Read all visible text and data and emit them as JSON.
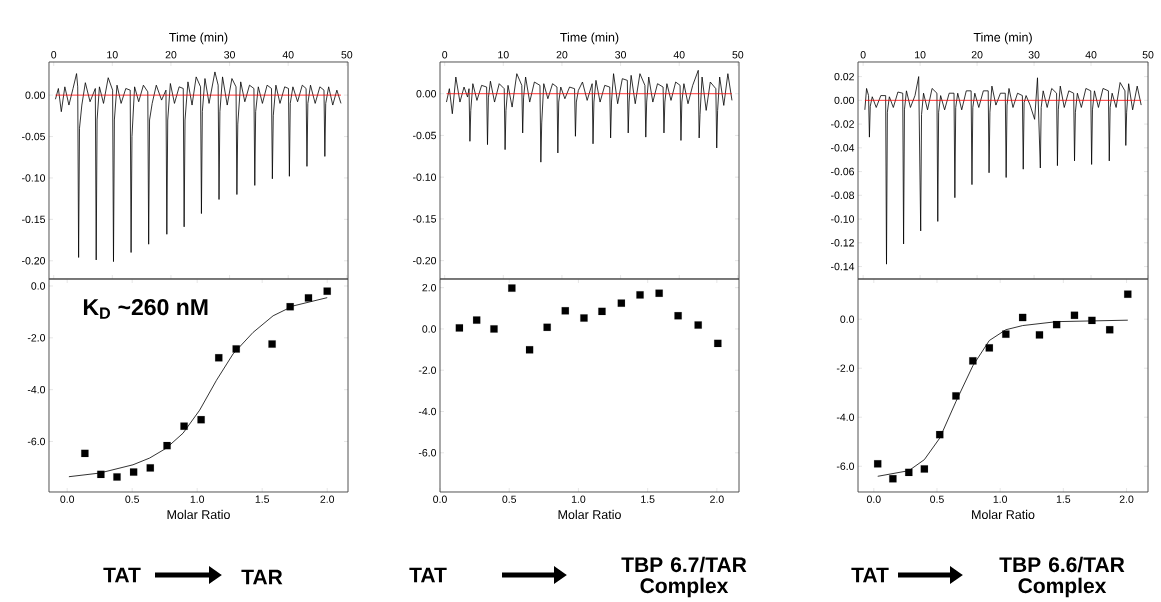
{
  "chart_data": [
    {
      "type": "line",
      "xlabel": "Time (min)",
      "xlim": [
        -0.8,
        50.2
      ],
      "xticks": [
        0,
        10,
        20,
        30,
        40,
        50
      ],
      "ylim": [
        -0.222,
        0.04
      ],
      "yticks": [
        {
          "value": 0,
          "label": "0.00"
        },
        {
          "value": -0.05,
          "label": "-0.05"
        },
        {
          "value": -0.1,
          "label": "-0.10"
        },
        {
          "value": -0.15,
          "label": "-0.15"
        },
        {
          "value": -0.2,
          "label": "-0.20"
        }
      ],
      "marker": "none",
      "series": [
        {
          "color": "#000000",
          "x": [
            0.3,
            0.8,
            1.3,
            1.9,
            2.6,
            3.3,
            3.9,
            4.1,
            4.25,
            4.4,
            4.8,
            5.4,
            6.2,
            7.1,
            7.25,
            7.4,
            7.8,
            8.5,
            9.3,
            10.05,
            10.2,
            10.35,
            10.8,
            11.5,
            12.3,
            13.05,
            13.2,
            13.35,
            13.8,
            14.5,
            15.3,
            16.05,
            16.2,
            16.35,
            16.8,
            17.5,
            18.4,
            19.15,
            19.3,
            19.45,
            19.9,
            20.6,
            21.4,
            22.1,
            22.25,
            22.4,
            22.9,
            23.6,
            24.3,
            25.05,
            25.2,
            25.35,
            25.8,
            26.5,
            27.5,
            28.05,
            28.2,
            28.35,
            28.8,
            29.6,
            30.4,
            31.1,
            31.25,
            31.4,
            31.9,
            32.6,
            33.4,
            34.15,
            34.3,
            34.45,
            34.9,
            35.6,
            36.4,
            37.15,
            37.3,
            37.45,
            37.9,
            38.6,
            39.4,
            40.05,
            40.2,
            40.35,
            40.8,
            41.6,
            42.4,
            43.05,
            43.2,
            43.35,
            43.8,
            44.6,
            45.4,
            46.1,
            46.25,
            46.4,
            46.9,
            47.6,
            48.3,
            49.0
          ],
          "values": [
            -0.005,
            0.008,
            -0.02,
            0.01,
            -0.012,
            0.008,
            0.026,
            0.01,
            -0.196,
            -0.04,
            -0.012,
            0.015,
            -0.008,
            0.008,
            -0.199,
            -0.03,
            0.01,
            -0.01,
            0.021,
            0.006,
            -0.201,
            -0.03,
            0.012,
            -0.01,
            0.008,
            0.006,
            -0.19,
            -0.05,
            0.01,
            -0.008,
            0.012,
            0.004,
            -0.18,
            -0.03,
            -0.01,
            0.012,
            -0.006,
            0.006,
            -0.168,
            -0.03,
            0.014,
            -0.01,
            0.01,
            0.008,
            -0.159,
            -0.03,
            0.016,
            -0.012,
            0.022,
            0.01,
            -0.143,
            -0.02,
            0.02,
            -0.01,
            0.028,
            0.012,
            -0.126,
            -0.02,
            0.022,
            -0.012,
            0.02,
            0.01,
            -0.12,
            -0.035,
            0.016,
            -0.008,
            0.012,
            0.008,
            -0.109,
            -0.02,
            0.01,
            -0.01,
            0.012,
            0.008,
            -0.101,
            -0.025,
            0.012,
            -0.01,
            0.01,
            0.008,
            -0.098,
            -0.01,
            0.01,
            -0.008,
            0.012,
            0.008,
            -0.086,
            -0.01,
            0.012,
            -0.01,
            0.01,
            0.006,
            -0.074,
            -0.01,
            0.01,
            -0.012,
            0.006,
            -0.01
          ]
        },
        {
          "color": "#ff0000",
          "x": [
            0.3,
            49.0
          ],
          "values": [
            0,
            0
          ]
        }
      ]
    },
    {
      "type": "line",
      "xlabel": "Time (min)",
      "xlim": [
        -0.8,
        50.2
      ],
      "xticks": [
        0,
        10,
        20,
        30,
        40,
        50
      ],
      "ylim": [
        -0.222,
        0.038
      ],
      "yticks": [
        {
          "value": 0,
          "label": "0.00"
        },
        {
          "value": -0.05,
          "label": "-0.05"
        },
        {
          "value": -0.1,
          "label": "-0.10"
        },
        {
          "value": -0.15,
          "label": "-0.15"
        },
        {
          "value": -0.2,
          "label": "-0.20"
        }
      ],
      "marker": "none",
      "series": [
        {
          "color": "#000000",
          "x": [
            0.3,
            0.8,
            1.3,
            1.9,
            2.6,
            3.3,
            3.9,
            4.15,
            4.3,
            4.45,
            4.8,
            5.5,
            6.3,
            7.15,
            7.3,
            7.45,
            7.8,
            8.5,
            9.3,
            10.15,
            10.3,
            10.45,
            10.8,
            11.5,
            12.3,
            13.15,
            13.3,
            13.45,
            13.8,
            14.5,
            15.3,
            16.25,
            16.4,
            16.55,
            16.9,
            17.6,
            18.4,
            19.15,
            19.3,
            19.45,
            19.8,
            20.5,
            21.3,
            22.15,
            22.3,
            22.45,
            22.8,
            23.5,
            24.3,
            25.15,
            25.3,
            25.45,
            25.8,
            26.5,
            27.3,
            28.15,
            28.3,
            28.45,
            28.8,
            29.5,
            30.3,
            31.15,
            31.3,
            31.45,
            31.8,
            32.5,
            33.3,
            34.15,
            34.3,
            34.45,
            34.8,
            35.5,
            36.3,
            37.25,
            37.4,
            37.55,
            37.9,
            38.6,
            39.4,
            40.15,
            40.3,
            40.45,
            40.8,
            41.5,
            42.3,
            43.25,
            43.4,
            43.55,
            43.9,
            44.6,
            45.3,
            46.25,
            46.4,
            46.55,
            46.9,
            47.6,
            48.3,
            49.0
          ],
          "values": [
            -0.01,
            0.006,
            -0.024,
            0.02,
            -0.01,
            0.008,
            -0.004,
            0.006,
            -0.057,
            -0.02,
            0.012,
            -0.008,
            0.01,
            0.008,
            -0.061,
            -0.005,
            0.015,
            -0.01,
            0.012,
            0.006,
            -0.067,
            -0.02,
            0.01,
            -0.016,
            0.024,
            0.01,
            -0.047,
            -0.005,
            0.02,
            -0.01,
            0.014,
            0.01,
            -0.082,
            -0.035,
            0.012,
            -0.006,
            0.012,
            0.008,
            -0.071,
            -0.01,
            0.008,
            -0.006,
            0.008,
            0.006,
            -0.051,
            -0.01,
            0.004,
            0.014,
            -0.008,
            0.012,
            -0.06,
            -0.01,
            0.016,
            -0.01,
            0.01,
            0.008,
            -0.053,
            -0.01,
            0.024,
            -0.012,
            0.018,
            0.016,
            -0.047,
            -0.01,
            0.022,
            -0.012,
            0.024,
            0.01,
            -0.052,
            -0.01,
            0.02,
            -0.01,
            0.012,
            0.008,
            -0.047,
            -0.01,
            0.012,
            -0.008,
            0.014,
            0.01,
            -0.056,
            -0.01,
            0.012,
            -0.012,
            0.01,
            0.028,
            -0.053,
            -0.025,
            0.02,
            -0.02,
            0.014,
            0.006,
            -0.065,
            -0.02,
            0.02,
            -0.014,
            0.024,
            -0.008
          ]
        },
        {
          "color": "#ff0000",
          "x": [
            0.3,
            49.0
          ],
          "values": [
            0,
            0
          ]
        }
      ]
    },
    {
      "type": "line",
      "xlabel": "Time (min)",
      "xlim": [
        -0.9,
        50.0
      ],
      "xticks": [
        0,
        10,
        20,
        30,
        40,
        50
      ],
      "ylim": [
        -0.1505,
        0.0323
      ],
      "yticks": [
        {
          "value": 0.02,
          "label": "0.02"
        },
        {
          "value": 0,
          "label": "0.00"
        },
        {
          "value": -0.02,
          "label": "-0.02"
        },
        {
          "value": -0.04,
          "label": "-0.04"
        },
        {
          "value": -0.06,
          "label": "-0.06"
        },
        {
          "value": -0.08,
          "label": "-0.08"
        },
        {
          "value": -0.1,
          "label": "-0.10"
        },
        {
          "value": -0.12,
          "label": "-0.12"
        },
        {
          "value": -0.14,
          "label": "-0.14"
        }
      ],
      "marker": "none",
      "series": [
        {
          "color": "#000000",
          "x": [
            0.3,
            0.6,
            0.95,
            1.1,
            1.25,
            1.6,
            2.3,
            3.1,
            3.95,
            4.1,
            4.25,
            4.6,
            5.3,
            6.1,
            6.95,
            7.1,
            7.25,
            7.6,
            8.3,
            9.1,
            9.75,
            10.1,
            10.25,
            10.6,
            11.3,
            12.1,
            12.95,
            13.1,
            13.25,
            13.6,
            14.3,
            15.1,
            15.95,
            16.1,
            16.25,
            16.6,
            17.3,
            18.1,
            18.95,
            19.1,
            19.25,
            19.6,
            20.3,
            21.1,
            21.95,
            22.1,
            22.25,
            22.6,
            23.3,
            24.1,
            24.95,
            25.1,
            25.25,
            25.6,
            26.3,
            27.1,
            27.95,
            28.1,
            28.25,
            28.6,
            29.3,
            30.1,
            30.6,
            31.1,
            31.25,
            31.6,
            32.3,
            33.1,
            33.95,
            34.1,
            34.25,
            34.6,
            35.3,
            36.1,
            36.95,
            37.1,
            37.25,
            37.6,
            38.3,
            39.1,
            39.95,
            40.1,
            40.25,
            40.6,
            41.3,
            42.1,
            43.05,
            43.2,
            43.35,
            43.7,
            44.4,
            45.1,
            45.95,
            46.1,
            46.25,
            46.6,
            47.3,
            48.1,
            48.8
          ],
          "values": [
            -0.008,
            0.01,
            0.004,
            -0.031,
            -0.005,
            0.003,
            -0.006,
            0.004,
            0.004,
            -0.138,
            -0.01,
            0.003,
            -0.006,
            0.007,
            0.006,
            -0.121,
            -0.008,
            0.008,
            -0.006,
            0.004,
            0.02,
            -0.11,
            -0.012,
            0.006,
            -0.008,
            0.01,
            0.006,
            -0.102,
            -0.01,
            0.004,
            -0.008,
            0.006,
            0.006,
            -0.082,
            -0.006,
            0.006,
            -0.008,
            0.008,
            0.008,
            -0.071,
            -0.006,
            0.006,
            -0.006,
            0.008,
            0.008,
            -0.061,
            -0.01,
            0.012,
            -0.004,
            0.006,
            0.006,
            -0.065,
            -0.004,
            0.01,
            -0.006,
            0.006,
            0.004,
            -0.058,
            -0.002,
            0.004,
            -0.004,
            -0.016,
            0.019,
            -0.057,
            -0.006,
            0.008,
            -0.006,
            0.01,
            0.006,
            -0.055,
            -0.008,
            0.012,
            -0.006,
            0.008,
            0.006,
            -0.051,
            -0.01,
            0.006,
            -0.006,
            0.01,
            0.008,
            -0.054,
            -0.008,
            0.008,
            -0.006,
            0.01,
            0.008,
            -0.051,
            -0.006,
            0.006,
            -0.006,
            0.015,
            0.008,
            -0.038,
            -0.01,
            0.014,
            -0.008,
            0.012,
            -0.004
          ]
        },
        {
          "color": "#ff0000",
          "x": [
            0.3,
            48.8
          ],
          "values": [
            0,
            0
          ]
        }
      ]
    },
    {
      "type": "scatter",
      "xlabel": "Molar Ratio",
      "xlim": [
        -0.14,
        2.16
      ],
      "xticks": [
        {
          "value": 0,
          "label": "0.0"
        },
        {
          "value": 0.5,
          "label": "0.5"
        },
        {
          "value": 1,
          "label": "1.0"
        },
        {
          "value": 1.5,
          "label": "1.5"
        },
        {
          "value": 2,
          "label": "2.0"
        }
      ],
      "ylim": [
        -7.95,
        0.27
      ],
      "yticks": [
        {
          "value": 0,
          "label": "0.0"
        },
        {
          "value": -2,
          "label": "-2.0"
        },
        {
          "value": -4,
          "label": "-4.0"
        },
        {
          "value": -6,
          "label": "-6.0"
        }
      ],
      "marker": "square",
      "annotations": [
        "**K$_{D}$ ~260 nM**",
        "**TAT**",
        "**TAR**"
      ],
      "series": [
        {
          "color": "#000000",
          "x": [
            0.136,
            0.259,
            0.383,
            0.511,
            0.639,
            0.768,
            0.899,
            1.03,
            1.166,
            1.3,
            1.576,
            1.715,
            1.856,
            2.0
          ],
          "values": [
            -6.46,
            -7.27,
            -7.37,
            -7.18,
            -7.02,
            -6.16,
            -5.41,
            -5.16,
            -2.77,
            -2.43,
            -2.24,
            -0.8,
            -0.46,
            -0.2
          ]
        },
        {
          "type": "line",
          "marker": "none",
          "color": "#000000",
          "x": [
            0.013,
            0.249,
            0.506,
            0.634,
            0.762,
            0.891,
            1.019,
            1.148,
            1.276,
            1.43,
            1.584,
            1.738,
            2.0
          ],
          "values": [
            -7.36,
            -7.22,
            -6.9,
            -6.64,
            -6.26,
            -5.68,
            -4.79,
            -3.64,
            -2.62,
            -1.79,
            -1.15,
            -0.77,
            -0.45
          ]
        }
      ]
    },
    {
      "type": "scatter",
      "xlabel": "Molar Ratio",
      "xlim": [
        0,
        2.16
      ],
      "xticks": [
        {
          "value": 0,
          "label": "0.0"
        },
        {
          "value": 0.5,
          "label": "0.5"
        },
        {
          "value": 1,
          "label": "1.0"
        },
        {
          "value": 1.5,
          "label": "1.5"
        },
        {
          "value": 2,
          "label": "2.0"
        }
      ],
      "ylim": [
        -7.9,
        2.42
      ],
      "yticks": [
        {
          "value": 2,
          "label": "2.0"
        },
        {
          "value": 0,
          "label": "0.0"
        },
        {
          "value": -2,
          "label": "-2.0"
        },
        {
          "value": -4,
          "label": "-4.0"
        },
        {
          "value": -6,
          "label": "-6.0"
        }
      ],
      "marker": "square",
      "annotations": [
        "**TAT**",
        "**TBP 6.7/TAR Complex**"
      ],
      "series": [
        {
          "color": "#000000",
          "x": [
            0.14,
            0.265,
            0.39,
            0.519,
            0.647,
            0.774,
            0.905,
            1.04,
            1.17,
            1.31,
            1.445,
            1.583,
            1.72,
            1.865,
            2.007
          ],
          "values": [
            0.05,
            0.43,
            0.0,
            1.98,
            -1.01,
            0.08,
            0.88,
            0.53,
            0.85,
            1.25,
            1.65,
            1.73,
            0.64,
            0.19,
            -0.7
          ]
        }
      ]
    },
    {
      "type": "scatter",
      "xlabel": "Molar Ratio",
      "xlim": [
        -0.125,
        2.17
      ],
      "xticks": [
        {
          "value": 0,
          "label": "0.0"
        },
        {
          "value": 0.5,
          "label": "0.5"
        },
        {
          "value": 1,
          "label": "1.0"
        },
        {
          "value": 1.5,
          "label": "1.5"
        },
        {
          "value": 2,
          "label": "2.0"
        }
      ],
      "ylim": [
        -7.05,
        1.64
      ],
      "yticks": [
        {
          "value": 0,
          "label": "0.0"
        },
        {
          "value": -2,
          "label": "-2.0"
        },
        {
          "value": -4,
          "label": "-4.0"
        },
        {
          "value": -6,
          "label": "-6.0"
        }
      ],
      "marker": "square",
      "annotations": [
        "**TAT**",
        "**TBP 6.6/TAR Complex**"
      ],
      "series": [
        {
          "color": "#000000",
          "x": [
            0.031,
            0.151,
            0.277,
            0.4,
            0.522,
            0.65,
            0.784,
            0.914,
            1.045,
            1.178,
            1.311,
            1.447,
            1.588,
            1.726,
            1.867,
            2.01
          ],
          "values": [
            -5.9,
            -6.51,
            -6.25,
            -6.11,
            -4.71,
            -3.13,
            -1.7,
            -1.17,
            -0.61,
            0.07,
            -0.64,
            -0.22,
            0.16,
            -0.05,
            -0.43,
            1.02
          ]
        },
        {
          "type": "line",
          "marker": "none",
          "color": "#000000",
          "x": [
            0.031,
            0.277,
            0.4,
            0.522,
            0.65,
            0.784,
            0.914,
            1.045,
            1.178,
            1.447,
            2.01
          ],
          "values": [
            -6.41,
            -6.18,
            -5.73,
            -4.85,
            -3.36,
            -1.9,
            -0.87,
            -0.43,
            -0.26,
            -0.1,
            -0.04
          ]
        }
      ]
    }
  ]
}
